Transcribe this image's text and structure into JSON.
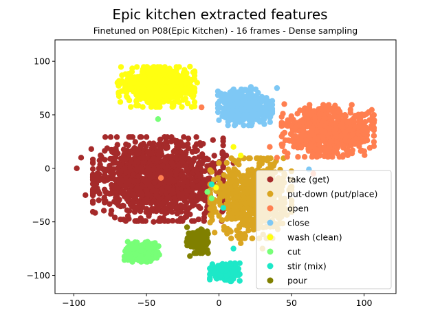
{
  "chart_data": {
    "type": "scatter",
    "title": "Epic kitchen extracted features",
    "subtitle": "Finetuned on P08(Epic Kitchen) - 16 frames - Dense sampling",
    "xlabel": "",
    "ylabel": "",
    "xlim": [
      -113,
      122
    ],
    "ylim": [
      -117,
      120
    ],
    "x_ticks": [
      -100,
      -50,
      0,
      50,
      100
    ],
    "y_ticks": [
      -100,
      -50,
      0,
      50,
      100
    ],
    "grid": false,
    "legend_position": "bottom-right",
    "series": [
      {
        "name": "take (get)",
        "color": "#a52a2a",
        "center": [
          -42,
          -10
        ],
        "spread": [
          24,
          21
        ],
        "count": 1300,
        "seed": 11,
        "extra": [
          [
            -95,
            10
          ],
          [
            -98,
            0
          ],
          [
            -92,
            -25
          ],
          [
            -88,
            18
          ],
          [
            -70,
            22
          ],
          [
            -33,
            25
          ],
          [
            -45,
            -50
          ],
          [
            -25,
            -48
          ],
          [
            5,
            12
          ],
          [
            10,
            5
          ]
        ]
      },
      {
        "name": "put-down (put/place)",
        "color": "#daa520",
        "center": [
          22,
          -28
        ],
        "spread": [
          15,
          20
        ],
        "count": 700,
        "seed": 23,
        "extra": [
          [
            -5,
            -45
          ],
          [
            -3,
            -60
          ],
          [
            0,
            5
          ],
          [
            15,
            -70
          ],
          [
            30,
            -75
          ],
          [
            45,
            -5
          ],
          [
            0,
            -20
          ]
        ]
      },
      {
        "name": "open",
        "color": "#ff7f50",
        "center": [
          75,
          35
        ],
        "spread": [
          17,
          13
        ],
        "count": 650,
        "seed": 37,
        "extra": [
          [
            40,
            10
          ],
          [
            35,
            20
          ],
          [
            45,
            60
          ],
          [
            100,
            50
          ],
          [
            107,
            45
          ],
          [
            65,
            -5
          ],
          [
            -12,
            57
          ],
          [
            -40,
            -9
          ]
        ]
      },
      {
        "name": "close",
        "color": "#7ec8f5",
        "center": [
          18,
          57
        ],
        "spread": [
          10,
          9
        ],
        "count": 420,
        "seed": 51,
        "extra": [
          [
            0,
            45
          ],
          [
            36,
            60
          ],
          [
            40,
            75
          ],
          [
            62,
            -1
          ],
          [
            22,
            76
          ]
        ]
      },
      {
        "name": "wash (clean)",
        "color": "#ffff10",
        "center": [
          -43,
          76
        ],
        "spread": [
          14,
          10
        ],
        "count": 600,
        "seed": 67,
        "extra": [
          [
            -70,
            80
          ],
          [
            -68,
            62
          ],
          [
            -20,
            95
          ],
          [
            -15,
            80
          ],
          [
            10,
            20
          ],
          [
            15,
            12
          ],
          [
            -2,
            -18
          ]
        ]
      },
      {
        "name": "cut",
        "color": "#77ff77",
        "center": [
          -53,
          -78
        ],
        "spread": [
          6.5,
          5
        ],
        "count": 280,
        "seed": 79,
        "extra": [
          [
            -42,
            46
          ],
          [
            -5,
            -28
          ],
          [
            -8,
            -22
          ]
        ]
      },
      {
        "name": "stir (mix)",
        "color": "#1de8c8",
        "center": [
          4,
          -97
        ],
        "spread": [
          5.5,
          4.5
        ],
        "count": 200,
        "seed": 83,
        "extra": [
          [
            3,
            -37
          ],
          [
            -5,
            -15
          ],
          [
            10,
            -75
          ]
        ]
      },
      {
        "name": "pour",
        "color": "#808000",
        "center": [
          -15,
          -68
        ],
        "spread": [
          4,
          6
        ],
        "count": 180,
        "seed": 97,
        "extra": [
          [
            -22,
            -55
          ],
          [
            -20,
            -82
          ],
          [
            -8,
            -60
          ]
        ]
      }
    ]
  },
  "legend_items": [
    {
      "label": "take (get)",
      "color": "#a52a2a"
    },
    {
      "label": "put-down (put/place)",
      "color": "#daa520"
    },
    {
      "label": "open",
      "color": "#ff7f50"
    },
    {
      "label": "close",
      "color": "#7ec8f5"
    },
    {
      "label": "wash (clean)",
      "color": "#ffff10"
    },
    {
      "label": "cut",
      "color": "#77ff77"
    },
    {
      "label": "stir (mix)",
      "color": "#1de8c8"
    },
    {
      "label": "pour",
      "color": "#808000"
    }
  ]
}
